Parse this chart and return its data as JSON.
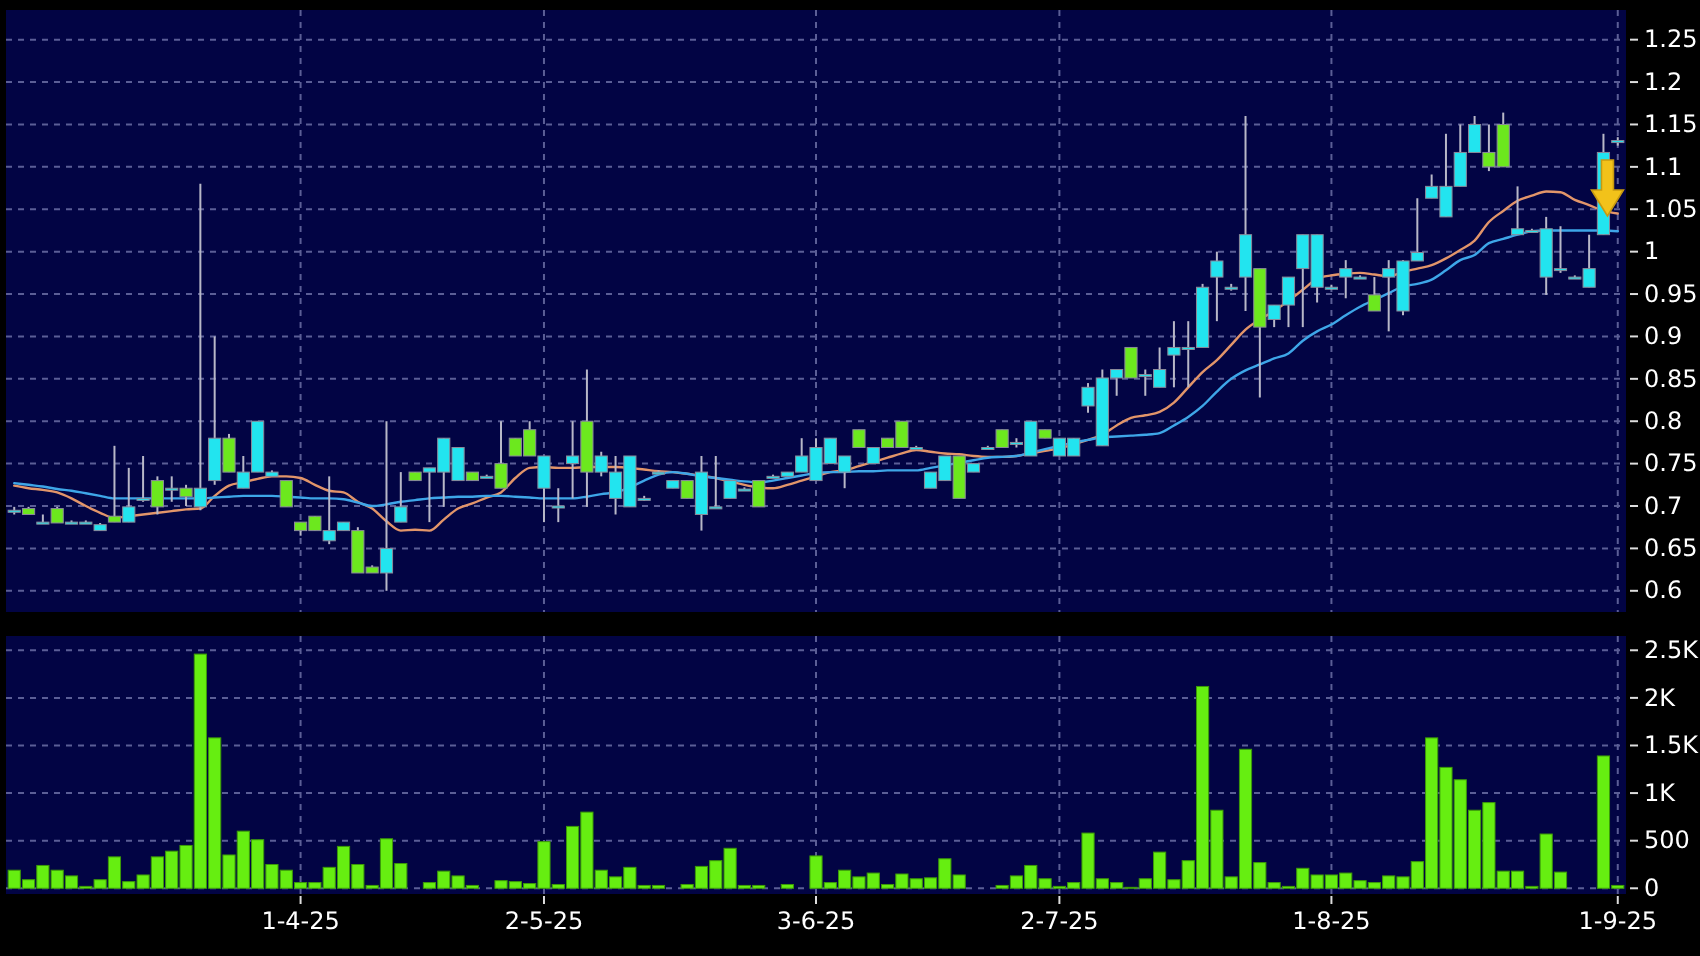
{
  "chart_data": [
    {
      "type": "candlestick",
      "categories": [
        null,
        null,
        null,
        null,
        null,
        null,
        null,
        null,
        null,
        null,
        null,
        null,
        null,
        null,
        null,
        null,
        null,
        null,
        null,
        null,
        null,
        null,
        null,
        null,
        null,
        null,
        null,
        null,
        null,
        null,
        null,
        null,
        null,
        null,
        null,
        null,
        null,
        null,
        null,
        null,
        null,
        null,
        null,
        null,
        null,
        null,
        null,
        null,
        null,
        null,
        null,
        null,
        null,
        null,
        null,
        null,
        null,
        null,
        null,
        null,
        null,
        null,
        null,
        null,
        null,
        null,
        null,
        null,
        null,
        null,
        null,
        null,
        null,
        null,
        null,
        null,
        null,
        null,
        null,
        null,
        null,
        null,
        null,
        null,
        null,
        null,
        null,
        null,
        null,
        null,
        null,
        null,
        null,
        null,
        null,
        null,
        null,
        null,
        null,
        null,
        null,
        null,
        null,
        null,
        null,
        null,
        null,
        null,
        null,
        null,
        null,
        null,
        null
      ],
      "ohlc": [
        [
          0.695,
          0.699,
          0.69,
          0.695
        ],
        [
          0.697,
          0.699,
          0.69,
          0.69
        ],
        [
          0.681,
          0.69,
          0.681,
          0.681
        ],
        [
          0.697,
          0.699,
          0.68,
          0.68
        ],
        [
          0.681,
          0.683,
          0.679,
          0.681
        ],
        [
          0.681,
          0.683,
          0.679,
          0.681
        ],
        [
          0.671,
          0.68,
          0.671,
          0.678
        ],
        [
          0.688,
          0.771,
          0.681,
          0.681
        ],
        [
          0.681,
          0.745,
          0.681,
          0.699
        ],
        [
          0.709,
          0.759,
          0.705,
          0.709
        ],
        [
          0.73,
          0.735,
          0.69,
          0.699
        ],
        [
          0.721,
          0.735,
          0.705,
          0.721
        ],
        [
          0.721,
          0.725,
          0.7,
          0.711
        ],
        [
          0.699,
          1.08,
          0.695,
          0.721
        ],
        [
          0.73,
          0.9,
          0.725,
          0.78
        ],
        [
          0.78,
          0.785,
          0.74,
          0.74
        ],
        [
          0.721,
          0.759,
          0.721,
          0.74
        ],
        [
          0.74,
          0.8,
          0.74,
          0.8
        ],
        [
          0.735,
          0.742,
          0.735,
          0.74
        ],
        [
          0.73,
          0.73,
          0.699,
          0.699
        ],
        [
          0.681,
          0.681,
          0.665,
          0.671
        ],
        [
          0.688,
          0.688,
          0.671,
          0.671
        ],
        [
          0.659,
          0.735,
          0.655,
          0.671
        ],
        [
          0.671,
          0.681,
          0.671,
          0.681
        ],
        [
          0.671,
          0.675,
          0.621,
          0.621
        ],
        [
          0.628,
          0.63,
          0.621,
          0.621
        ],
        [
          0.621,
          0.8,
          0.6,
          0.65
        ],
        [
          0.681,
          0.74,
          0.681,
          0.699
        ],
        [
          0.74,
          0.74,
          0.73,
          0.73
        ],
        [
          0.74,
          0.745,
          0.681,
          0.745
        ],
        [
          0.74,
          0.78,
          0.699,
          0.78
        ],
        [
          0.73,
          0.769,
          0.73,
          0.769
        ],
        [
          0.74,
          0.74,
          0.73,
          0.73
        ],
        [
          0.735,
          0.737,
          0.733,
          0.735
        ],
        [
          0.75,
          0.8,
          0.721,
          0.721
        ],
        [
          0.78,
          0.78,
          0.759,
          0.759
        ],
        [
          0.79,
          0.8,
          0.759,
          0.759
        ],
        [
          0.721,
          0.759,
          0.681,
          0.759
        ],
        [
          0.7,
          0.721,
          0.681,
          0.7
        ],
        [
          0.75,
          0.8,
          0.709,
          0.759
        ],
        [
          0.8,
          0.861,
          0.699,
          0.74
        ],
        [
          0.74,
          0.764,
          0.735,
          0.759
        ],
        [
          0.709,
          0.759,
          0.69,
          0.74
        ],
        [
          0.699,
          0.759,
          0.699,
          0.759
        ],
        [
          0.709,
          0.712,
          0.706,
          0.709
        ],
        [
          0.74,
          0.742,
          0.738,
          0.74
        ],
        [
          0.721,
          0.73,
          0.721,
          0.73
        ],
        [
          0.73,
          0.73,
          0.709,
          0.709
        ],
        [
          0.69,
          0.759,
          0.671,
          0.74
        ],
        [
          0.699,
          0.759,
          0.699,
          0.699
        ],
        [
          0.709,
          0.73,
          0.709,
          0.73
        ],
        [
          0.72,
          0.722,
          0.718,
          0.72
        ],
        [
          0.73,
          0.73,
          0.699,
          0.699
        ],
        [
          0.735,
          0.737,
          0.733,
          0.735
        ],
        [
          0.735,
          0.74,
          0.735,
          0.74
        ],
        [
          0.74,
          0.78,
          0.74,
          0.759
        ],
        [
          0.73,
          0.78,
          0.73,
          0.769
        ],
        [
          0.75,
          0.78,
          0.75,
          0.78
        ],
        [
          0.74,
          0.759,
          0.721,
          0.759
        ],
        [
          0.79,
          0.79,
          0.769,
          0.769
        ],
        [
          0.75,
          0.769,
          0.75,
          0.769
        ],
        [
          0.78,
          0.78,
          0.769,
          0.769
        ],
        [
          0.8,
          0.8,
          0.769,
          0.769
        ],
        [
          0.769,
          0.771,
          0.767,
          0.769
        ],
        [
          0.721,
          0.74,
          0.721,
          0.74
        ],
        [
          0.73,
          0.759,
          0.73,
          0.759
        ],
        [
          0.759,
          0.759,
          0.709,
          0.709
        ],
        [
          0.74,
          0.75,
          0.74,
          0.75
        ],
        [
          0.769,
          0.771,
          0.767,
          0.769
        ],
        [
          0.79,
          0.79,
          0.769,
          0.769
        ],
        [
          0.775,
          0.78,
          0.769,
          0.775
        ],
        [
          0.759,
          0.8,
          0.759,
          0.8
        ],
        [
          0.79,
          0.79,
          0.78,
          0.78
        ],
        [
          0.759,
          0.78,
          0.759,
          0.78
        ],
        [
          0.759,
          0.78,
          0.759,
          0.78
        ],
        [
          0.818,
          0.845,
          0.81,
          0.84
        ],
        [
          0.771,
          0.861,
          0.771,
          0.851
        ],
        [
          0.851,
          0.861,
          0.83,
          0.861
        ],
        [
          0.887,
          0.887,
          0.851,
          0.851
        ],
        [
          0.855,
          0.861,
          0.83,
          0.855
        ],
        [
          0.84,
          0.887,
          0.84,
          0.861
        ],
        [
          0.878,
          0.918,
          0.84,
          0.887
        ],
        [
          0.887,
          0.918,
          0.84,
          0.887
        ],
        [
          0.887,
          0.962,
          0.887,
          0.958
        ],
        [
          0.97,
          1.0,
          0.918,
          0.989
        ],
        [
          0.958,
          0.962,
          0.954,
          0.958
        ],
        [
          0.97,
          1.16,
          0.93,
          1.02
        ],
        [
          0.98,
          0.98,
          0.828,
          0.911
        ],
        [
          0.92,
          0.937,
          0.911,
          0.937
        ],
        [
          0.937,
          0.97,
          0.911,
          0.97
        ],
        [
          0.98,
          1.02,
          0.911,
          1.02
        ],
        [
          0.958,
          1.02,
          0.94,
          1.02
        ],
        [
          0.958,
          0.961,
          0.955,
          0.958
        ],
        [
          0.97,
          0.99,
          0.945,
          0.98
        ],
        [
          0.97,
          0.972,
          0.968,
          0.97
        ],
        [
          0.949,
          0.97,
          0.93,
          0.93
        ],
        [
          0.97,
          0.99,
          0.906,
          0.98
        ],
        [
          0.93,
          0.99,
          0.925,
          0.989
        ],
        [
          0.989,
          1.063,
          0.989,
          0.999
        ],
        [
          1.063,
          1.091,
          1.063,
          1.077
        ],
        [
          1.041,
          1.139,
          1.041,
          1.077
        ],
        [
          1.077,
          1.15,
          1.077,
          1.117
        ],
        [
          1.117,
          1.16,
          1.117,
          1.15
        ],
        [
          1.117,
          1.15,
          1.095,
          1.1
        ],
        [
          1.15,
          1.164,
          1.1,
          1.1
        ],
        [
          1.02,
          1.077,
          1.02,
          1.027
        ],
        [
          1.025,
          1.027,
          1.023,
          1.025
        ],
        [
          0.97,
          1.041,
          0.949,
          1.027
        ],
        [
          0.98,
          1.03,
          0.975,
          0.98
        ],
        [
          0.97,
          0.972,
          0.968,
          0.97
        ],
        [
          0.958,
          1.02,
          0.958,
          0.98
        ],
        [
          1.02,
          1.139,
          1.02,
          1.117
        ],
        [
          1.131,
          1.135,
          1.125,
          1.131
        ]
      ],
      "colors": [
        "#22e4ef",
        "#6ce81e",
        "#22e4ef",
        "#6ce81e",
        "#22e4ef",
        "#22e4ef",
        "#22e4ef",
        "#6ce81e",
        "#22e4ef",
        "#22e4ef",
        "#6ce81e",
        "#22e4ef",
        "#6ce81e",
        "#22e4ef",
        "#22e4ef",
        "#6ce81e",
        "#22e4ef",
        "#22e4ef",
        "#22e4ef",
        "#6ce81e",
        "#6ce81e",
        "#6ce81e",
        "#22e4ef",
        "#22e4ef",
        "#6ce81e",
        "#6ce81e",
        "#22e4ef",
        "#22e4ef",
        "#6ce81e",
        "#22e4ef",
        "#22e4ef",
        "#22e4ef",
        "#6ce81e",
        "#22e4ef",
        "#6ce81e",
        "#6ce81e",
        "#6ce81e",
        "#22e4ef",
        "#22e4ef",
        "#22e4ef",
        "#6ce81e",
        "#22e4ef",
        "#22e4ef",
        "#22e4ef",
        "#22e4ef",
        "#22e4ef",
        "#22e4ef",
        "#6ce81e",
        "#22e4ef",
        "#22e4ef",
        "#22e4ef",
        "#22e4ef",
        "#6ce81e",
        "#22e4ef",
        "#22e4ef",
        "#22e4ef",
        "#22e4ef",
        "#22e4ef",
        "#22e4ef",
        "#6ce81e",
        "#22e4ef",
        "#6ce81e",
        "#6ce81e",
        "#22e4ef",
        "#22e4ef",
        "#22e4ef",
        "#6ce81e",
        "#22e4ef",
        "#22e4ef",
        "#6ce81e",
        "#22e4ef",
        "#22e4ef",
        "#6ce81e",
        "#22e4ef",
        "#22e4ef",
        "#22e4ef",
        "#22e4ef",
        "#22e4ef",
        "#6ce81e",
        "#22e4ef",
        "#22e4ef",
        "#22e4ef",
        "#22e4ef",
        "#22e4ef",
        "#22e4ef",
        "#22e4ef",
        "#22e4ef",
        "#6ce81e",
        "#22e4ef",
        "#22e4ef",
        "#22e4ef",
        "#22e4ef",
        "#22e4ef",
        "#22e4ef",
        "#22e4ef",
        "#6ce81e",
        "#22e4ef",
        "#22e4ef",
        "#22e4ef",
        "#22e4ef",
        "#22e4ef",
        "#22e4ef",
        "#22e4ef",
        "#6ce81e",
        "#6ce81e",
        "#22e4ef",
        "#22e4ef",
        "#22e4ef",
        "#22e4ef",
        "#22e4ef",
        "#22e4ef",
        "#22e4ef",
        "#22e4ef"
      ],
      "series": [
        {
          "type": "line",
          "color": "#e2956a",
          "values": [
            0.724,
            0.721,
            0.719,
            0.716,
            0.709,
            0.7,
            0.692,
            0.686,
            0.688,
            0.69,
            0.692,
            0.694,
            0.696,
            0.697,
            0.712,
            0.724,
            0.728,
            0.732,
            0.735,
            0.735,
            0.733,
            0.725,
            0.718,
            0.716,
            0.705,
            0.697,
            0.682,
            0.671,
            0.672,
            0.671,
            0.684,
            0.697,
            0.703,
            0.71,
            0.716,
            0.733,
            0.745,
            0.746,
            0.745,
            0.745,
            0.746,
            0.746,
            0.746,
            0.745,
            0.743,
            0.741,
            0.74,
            0.738,
            0.736,
            0.733,
            0.729,
            0.725,
            0.722,
            0.721,
            0.725,
            0.73,
            0.735,
            0.74,
            0.742,
            0.747,
            0.752,
            0.757,
            0.762,
            0.766,
            0.764,
            0.762,
            0.761,
            0.759,
            0.758,
            0.758,
            0.759,
            0.762,
            0.765,
            0.768,
            0.773,
            0.778,
            0.784,
            0.795,
            0.804,
            0.807,
            0.811,
            0.822,
            0.84,
            0.858,
            0.872,
            0.89,
            0.908,
            0.92,
            0.93,
            0.942,
            0.955,
            0.968,
            0.972,
            0.974,
            0.975,
            0.973,
            0.971,
            0.976,
            0.98,
            0.984,
            0.992,
            1.002,
            1.013,
            1.035,
            1.048,
            1.06,
            1.066,
            1.071,
            1.07,
            1.061,
            1.055,
            1.048,
            1.045
          ]
        },
        {
          "type": "line",
          "color": "#3ea6e8",
          "values": [
            0.727,
            0.725,
            0.723,
            0.72,
            0.718,
            0.715,
            0.712,
            0.709,
            0.709,
            0.709,
            0.709,
            0.709,
            0.709,
            0.709,
            0.71,
            0.711,
            0.712,
            0.712,
            0.712,
            0.711,
            0.71,
            0.709,
            0.709,
            0.708,
            0.704,
            0.7,
            0.702,
            0.705,
            0.707,
            0.709,
            0.71,
            0.711,
            0.711,
            0.712,
            0.712,
            0.711,
            0.71,
            0.709,
            0.709,
            0.709,
            0.711,
            0.714,
            0.716,
            0.722,
            0.73,
            0.737,
            0.74,
            0.738,
            0.735,
            0.733,
            0.731,
            0.729,
            0.728,
            0.73,
            0.733,
            0.736,
            0.739,
            0.74,
            0.74,
            0.741,
            0.741,
            0.742,
            0.742,
            0.742,
            0.745,
            0.748,
            0.751,
            0.754,
            0.757,
            0.758,
            0.759,
            0.763,
            0.767,
            0.771,
            0.775,
            0.778,
            0.781,
            0.782,
            0.783,
            0.784,
            0.786,
            0.795,
            0.805,
            0.818,
            0.835,
            0.85,
            0.86,
            0.867,
            0.874,
            0.88,
            0.895,
            0.906,
            0.914,
            0.925,
            0.935,
            0.943,
            0.951,
            0.959,
            0.962,
            0.967,
            0.978,
            0.99,
            0.996,
            1.01,
            1.015,
            1.02,
            1.024,
            1.025,
            1.025,
            1.025,
            1.025,
            1.025,
            1.024
          ]
        }
      ],
      "ylim": [
        0.575,
        1.285
      ],
      "yticks": [
        0.6,
        0.65,
        0.7,
        0.75,
        0.8,
        0.85,
        0.9,
        0.95,
        1,
        1.05,
        1.1,
        1.15,
        1.2,
        1.25
      ],
      "grid": true,
      "tick_labels": "y"
    },
    {
      "type": "bar",
      "categories": [
        null,
        null,
        null,
        null,
        null,
        null,
        null,
        null,
        null,
        null,
        null,
        null,
        null,
        null,
        null,
        null,
        null,
        null,
        null,
        null,
        "1-4-25",
        null,
        null,
        null,
        null,
        null,
        null,
        null,
        null,
        null,
        null,
        null,
        null,
        null,
        null,
        null,
        null,
        "2-5-25",
        null,
        null,
        null,
        null,
        null,
        null,
        null,
        null,
        null,
        null,
        null,
        null,
        null,
        null,
        null,
        null,
        null,
        null,
        "3-6-25",
        null,
        null,
        null,
        null,
        null,
        null,
        null,
        null,
        null,
        null,
        null,
        null,
        null,
        null,
        null,
        null,
        "2-7-25",
        null,
        null,
        null,
        null,
        null,
        null,
        null,
        null,
        null,
        null,
        null,
        null,
        null,
        null,
        null,
        null,
        null,
        null,
        "1-8-25",
        null,
        null,
        null,
        null,
        null,
        null,
        null,
        null,
        null,
        null,
        null,
        null,
        null,
        null,
        null,
        null,
        null,
        null,
        null,
        "1-9-25"
      ],
      "values": [
        190,
        90,
        240,
        190,
        130,
        20,
        90,
        330,
        70,
        140,
        330,
        390,
        450,
        2460,
        1580,
        350,
        600,
        510,
        250,
        190,
        60,
        60,
        220,
        440,
        250,
        30,
        520,
        260,
        0,
        60,
        180,
        130,
        30,
        0,
        80,
        70,
        50,
        490,
        40,
        650,
        800,
        190,
        120,
        220,
        30,
        30,
        0,
        40,
        230,
        290,
        420,
        30,
        30,
        0,
        40,
        0,
        340,
        60,
        190,
        120,
        160,
        40,
        150,
        100,
        110,
        310,
        140,
        0,
        0,
        30,
        130,
        240,
        100,
        20,
        60,
        580,
        100,
        60,
        10,
        100,
        380,
        90,
        290,
        2120,
        820,
        120,
        1460,
        270,
        60,
        20,
        210,
        140,
        140,
        160,
        80,
        60,
        130,
        120,
        280,
        1580,
        1270,
        1140,
        820,
        900,
        180,
        180,
        20,
        570,
        170,
        0,
        0,
        1390,
        30
      ],
      "color": "#66ee11",
      "ylim": [
        -60,
        2650
      ],
      "yticks": [
        0,
        500,
        {
          "value": 1000,
          "label": "1K"
        },
        {
          "value": 1500,
          "label": "1.5K"
        },
        {
          "value": 2000,
          "label": "2K"
        },
        {
          "value": 2500,
          "label": "2.5K"
        }
      ],
      "grid": true
    }
  ]
}
